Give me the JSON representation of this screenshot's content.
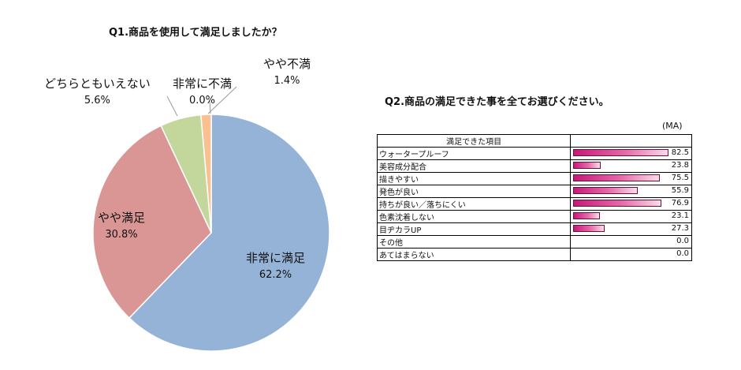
{
  "q1": {
    "title": "Q1.商品を使用して満足しましたか？"
  },
  "chart_data": [
    {
      "type": "pie",
      "title": "Q1.商品を使用して満足しましたか？",
      "slices": [
        {
          "label": "非常に満足",
          "value": 62.2,
          "display": "62.2%",
          "color": "#95b3d7"
        },
        {
          "label": "やや満足",
          "value": 30.8,
          "display": "30.8%",
          "color": "#d99694"
        },
        {
          "label": "どちらともいえない",
          "value": 5.6,
          "display": "5.6%",
          "color": "#c3d69b"
        },
        {
          "label": "やや不満",
          "value": 1.4,
          "display": "1.4%",
          "color": "#fac090"
        },
        {
          "label": "非常に不満",
          "value": 0.0,
          "display": "0.0%",
          "color": "#b3a2c7"
        }
      ]
    },
    {
      "type": "bar",
      "title": "Q2.商品の満足できた事を全てお選びください。",
      "unit_note": "(MA)",
      "column_header": "満足できた項目",
      "categories": [
        "ウォータープルーフ",
        "美容成分配合",
        "描きやすい",
        "発色が良い",
        "持ちが良い／落ちにくい",
        "色素沈着しない",
        "目ヂカラUP",
        "その他",
        "あてはまらない"
      ],
      "values": [
        82.5,
        23.8,
        75.5,
        55.9,
        76.9,
        23.1,
        27.3,
        0.0,
        0.0
      ],
      "value_labels": [
        "82.5",
        "23.8",
        "75.5",
        "55.9",
        "76.9",
        "23.1",
        "27.3",
        "0.0",
        "0.0"
      ],
      "xlim": [
        0,
        100
      ]
    }
  ]
}
